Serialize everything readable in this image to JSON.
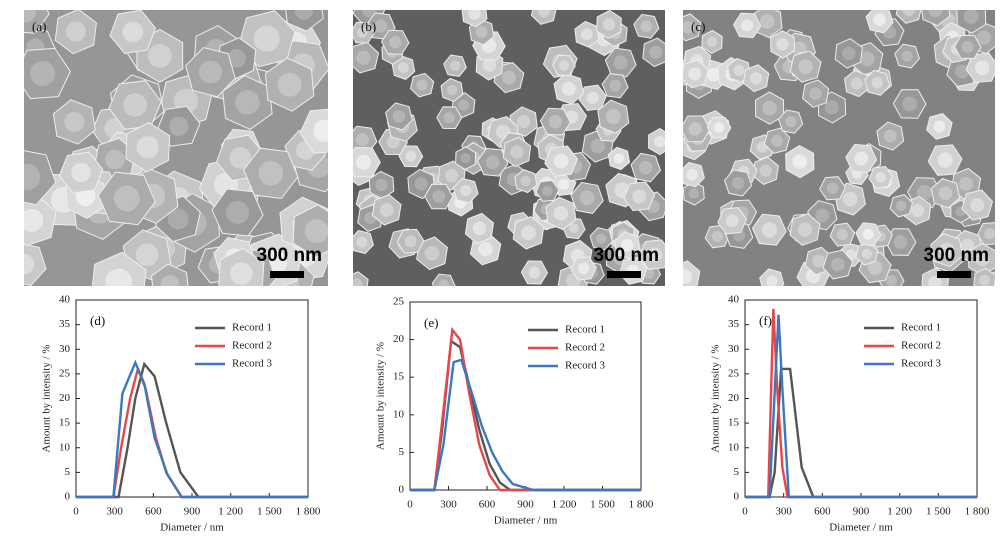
{
  "images": [
    {
      "label": "(a)",
      "scale": "300 nm"
    },
    {
      "label": "(b)",
      "scale": "300 nm"
    },
    {
      "label": "(c)",
      "scale": "300 nm"
    }
  ],
  "chart_data": [
    {
      "type": "line",
      "annotation": "(d)",
      "xlabel": "Diameter / nm",
      "ylabel": "Amount by intensity / %",
      "xlim": [
        0,
        1800
      ],
      "xticks": [
        0,
        300,
        600,
        900,
        {
          "value": 1200,
          "label": "1 200"
        },
        {
          "value": 1500,
          "label": "1 500"
        },
        {
          "value": 1800,
          "label": "1 800"
        }
      ],
      "ylim": [
        0,
        40
      ],
      "yticks": [
        0,
        5,
        10,
        15,
        20,
        25,
        30,
        35,
        40
      ],
      "legend": "upper right",
      "series": [
        {
          "name": "Record 1",
          "color": "#555555",
          "x": [
            0,
            330,
            400,
            460,
            530,
            610,
            700,
            810,
            950,
            1800
          ],
          "values": [
            0,
            0,
            10,
            20,
            27,
            24.5,
            15,
            5,
            0,
            0
          ]
        },
        {
          "name": "Record 2",
          "color": "#e8474a",
          "x": [
            0,
            290,
            350,
            420,
            480,
            540,
            620,
            700,
            820,
            1800
          ],
          "values": [
            0,
            0,
            10,
            20,
            26,
            22,
            12,
            5,
            0,
            0
          ]
        },
        {
          "name": "Record 3",
          "color": "#3a78c0",
          "x": [
            0,
            290,
            360,
            460,
            530,
            610,
            710,
            820,
            1800
          ],
          "values": [
            0,
            0,
            21,
            27.3,
            23,
            12,
            4.5,
            0,
            0
          ]
        }
      ]
    },
    {
      "type": "line",
      "annotation": "(e)",
      "xlabel": "Diameter / nm",
      "ylabel": "Amount by intensity / %",
      "xlim": [
        0,
        1800
      ],
      "xticks": [
        0,
        300,
        600,
        900,
        {
          "value": 1200,
          "label": "1 200"
        },
        {
          "value": 1500,
          "label": "1 500"
        },
        {
          "value": 1800,
          "label": "1 800"
        }
      ],
      "ylim": [
        0,
        25
      ],
      "yticks": [
        0,
        5,
        10,
        15,
        20,
        25
      ],
      "legend": "upper right",
      "series": [
        {
          "name": "Record 1",
          "color": "#555555",
          "x": [
            0,
            190,
            250,
            320,
            390,
            460,
            540,
            620,
            700,
            780,
            1800
          ],
          "values": [
            0,
            0,
            8,
            19.8,
            19,
            14,
            8,
            3.5,
            1,
            0,
            0
          ]
        },
        {
          "name": "Record 2",
          "color": "#e8474a",
          "x": [
            0,
            190,
            250,
            330,
            390,
            460,
            540,
            620,
            700,
            1800
          ],
          "values": [
            0,
            0,
            9,
            21.3,
            20,
            13,
            6,
            2,
            0,
            0
          ]
        },
        {
          "name": "Record 3",
          "color": "#3a78c0",
          "x": [
            0,
            190,
            260,
            340,
            400,
            480,
            560,
            640,
            720,
            800,
            960,
            1800
          ],
          "values": [
            0,
            0,
            6,
            17,
            17.3,
            13,
            8.5,
            5,
            2.5,
            0.8,
            0,
            0
          ]
        }
      ]
    },
    {
      "type": "line",
      "annotation": "(f)",
      "xlabel": "Diameter / nm",
      "ylabel": "Amount by intensity / %",
      "xlim": [
        0,
        1800
      ],
      "xticks": [
        0,
        300,
        600,
        900,
        {
          "value": 1200,
          "label": "1 200"
        },
        {
          "value": 1500,
          "label": "1 500"
        },
        {
          "value": 1800,
          "label": "1 800"
        }
      ],
      "ylim": [
        0,
        40
      ],
      "yticks": [
        0,
        5,
        10,
        15,
        20,
        25,
        30,
        35,
        40
      ],
      "legend": "upper right",
      "series": [
        {
          "name": "Record 1",
          "color": "#555555",
          "x": [
            0,
            190,
            230,
            280,
            350,
            440,
            530,
            1800
          ],
          "values": [
            0,
            0,
            5,
            26,
            26,
            6,
            0,
            0
          ]
        },
        {
          "name": "Record 2",
          "color": "#e8474a",
          "x": [
            0,
            180,
            220,
            250,
            290,
            330,
            1800
          ],
          "values": [
            0,
            0,
            38.2,
            22,
            6,
            0,
            0
          ]
        },
        {
          "name": "Record 3",
          "color": "#3a78c0",
          "x": [
            0,
            190,
            260,
            290,
            340,
            1800
          ],
          "values": [
            0,
            0,
            37,
            22,
            0,
            0
          ]
        }
      ]
    }
  ]
}
